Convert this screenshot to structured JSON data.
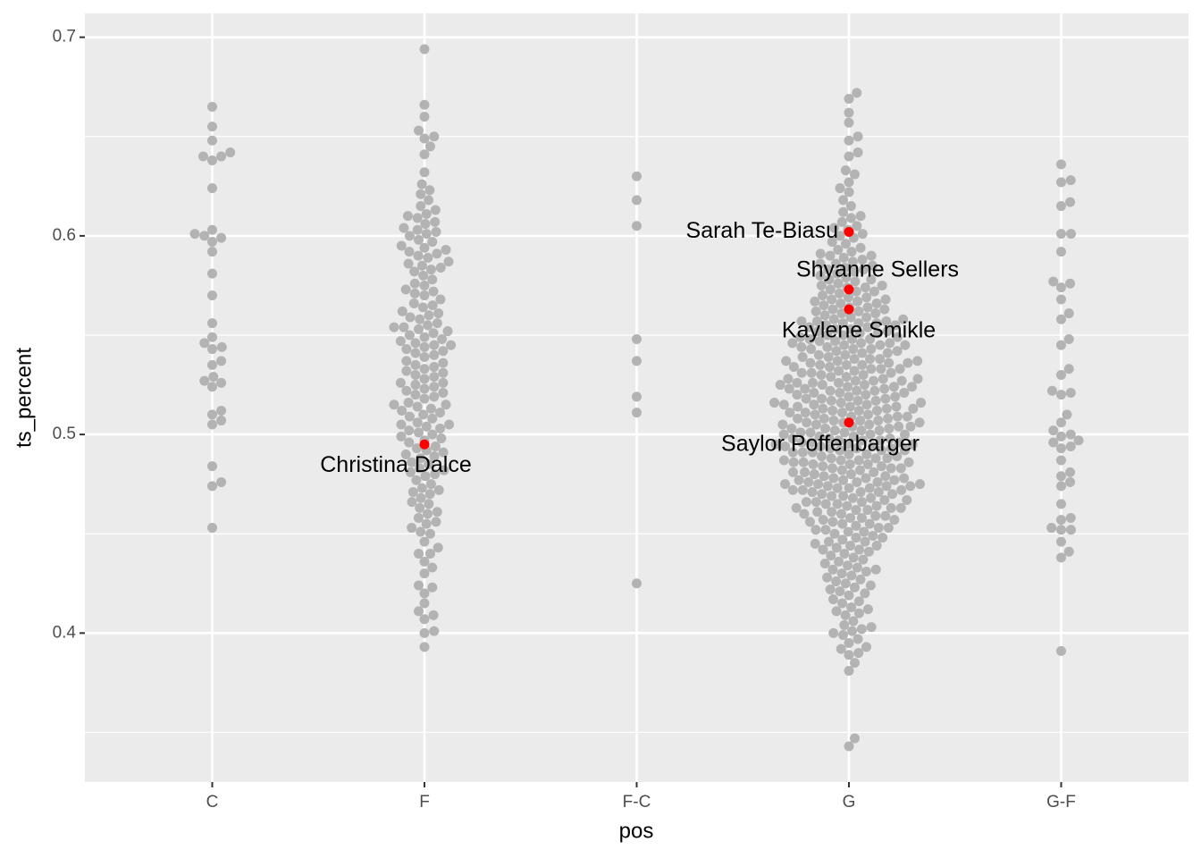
{
  "chart_data": {
    "type": "beeswarm",
    "x_label": "pos",
    "y_label": "ts_percent",
    "categories": [
      "C",
      "F",
      "F-C",
      "G",
      "G-F"
    ],
    "color": "#b3b3b3",
    "highlight_color": "#ff0000",
    "panel_color": "#ebebeb",
    "grid": true,
    "ylim": [
      0.325,
      0.712
    ],
    "yticks": [
      0.4,
      0.5,
      0.6,
      0.7
    ],
    "y_minor_ticks": [
      0.35,
      0.45,
      0.55,
      0.65
    ],
    "values": [
      [
        0.665,
        0.655,
        0.648,
        0.642,
        0.64,
        0.638,
        0.64,
        0.624,
        0.603,
        0.601,
        0.599,
        0.597,
        0.6,
        0.592,
        0.581,
        0.57,
        0.556,
        0.549,
        0.546,
        0.544,
        0.543,
        0.537,
        0.535,
        0.529,
        0.527,
        0.526,
        0.524,
        0.512,
        0.51,
        0.507,
        0.505,
        0.484,
        0.476,
        0.474,
        0.453
      ],
      [
        0.694,
        0.666,
        0.66,
        0.653,
        0.65,
        0.649,
        0.645,
        0.641,
        0.632,
        0.626,
        0.623,
        0.621,
        0.618,
        0.615,
        0.613,
        0.611,
        0.61,
        0.609,
        0.607,
        0.606,
        0.604,
        0.603,
        0.602,
        0.601,
        0.6,
        0.598,
        0.597,
        0.595,
        0.594,
        0.593,
        0.592,
        0.591,
        0.59,
        0.589,
        0.587,
        0.586,
        0.585,
        0.584,
        0.583,
        0.582,
        0.58,
        0.578,
        0.576,
        0.575,
        0.573,
        0.572,
        0.571,
        0.57,
        0.568,
        0.566,
        0.565,
        0.564,
        0.562,
        0.561,
        0.56,
        0.559,
        0.558,
        0.556,
        0.555,
        0.554,
        0.553,
        0.552,
        0.551,
        0.55,
        0.554,
        0.549,
        0.548,
        0.547,
        0.546,
        0.545,
        0.544,
        0.543,
        0.542,
        0.541,
        0.54,
        0.545,
        0.539,
        0.537,
        0.536,
        0.535,
        0.533,
        0.532,
        0.531,
        0.53,
        0.534,
        0.529,
        0.528,
        0.526,
        0.525,
        0.524,
        0.523,
        0.522,
        0.521,
        0.52,
        0.526,
        0.519,
        0.518,
        0.516,
        0.515,
        0.514,
        0.513,
        0.512,
        0.511,
        0.51,
        0.515,
        0.509,
        0.508,
        0.506,
        0.505,
        0.504,
        0.503,
        0.502,
        0.501,
        0.5,
        0.505,
        0.499,
        0.498,
        0.496,
        0.494,
        0.493,
        0.492,
        0.491,
        0.49,
        0.497,
        0.489,
        0.488,
        0.486,
        0.485,
        0.483,
        0.482,
        0.481,
        0.48,
        0.479,
        0.477,
        0.475,
        0.473,
        0.472,
        0.471,
        0.47,
        0.468,
        0.466,
        0.465,
        0.463,
        0.461,
        0.46,
        0.458,
        0.456,
        0.455,
        0.453,
        0.451,
        0.45,
        0.446,
        0.443,
        0.44,
        0.44,
        0.436,
        0.433,
        0.43,
        0.424,
        0.423,
        0.42,
        0.415,
        0.411,
        0.409,
        0.407,
        0.401,
        0.4,
        0.393
      ],
      [
        0.63,
        0.618,
        0.605,
        0.548,
        0.537,
        0.519,
        0.511,
        0.425
      ],
      [
        0.672,
        0.669,
        0.662,
        0.657,
        0.65,
        0.648,
        0.642,
        0.64,
        0.633,
        0.631,
        0.627,
        0.624,
        0.622,
        0.618,
        0.615,
        0.612,
        0.61,
        0.609,
        0.607,
        0.605,
        0.604,
        0.603,
        0.601,
        0.6,
        0.599,
        0.597,
        0.596,
        0.594,
        0.593,
        0.592,
        0.59,
        0.59,
        0.591,
        0.589,
        0.588,
        0.587,
        0.586,
        0.585,
        0.584,
        0.583,
        0.582,
        0.581,
        0.58,
        0.583,
        0.586,
        0.579,
        0.578,
        0.577,
        0.576,
        0.575,
        0.574,
        0.573,
        0.572,
        0.571,
        0.57,
        0.575,
        0.572,
        0.578,
        0.574,
        0.569,
        0.568,
        0.567,
        0.566,
        0.565,
        0.564,
        0.563,
        0.562,
        0.561,
        0.56,
        0.567,
        0.564,
        0.562,
        0.569,
        0.566,
        0.561,
        0.563,
        0.568,
        0.559,
        0.558,
        0.557,
        0.557,
        0.556,
        0.555,
        0.554,
        0.553,
        0.552,
        0.551,
        0.55,
        0.558,
        0.556,
        0.555,
        0.553,
        0.552,
        0.551,
        0.559,
        0.557,
        0.554,
        0.55,
        0.556,
        0.549,
        0.548,
        0.547,
        0.546,
        0.545,
        0.544,
        0.543,
        0.542,
        0.541,
        0.54,
        0.548,
        0.546,
        0.545,
        0.543,
        0.542,
        0.541,
        0.549,
        0.547,
        0.544,
        0.54,
        0.546,
        0.543,
        0.548,
        0.545,
        0.539,
        0.538,
        0.537,
        0.536,
        0.535,
        0.534,
        0.533,
        0.532,
        0.531,
        0.53,
        0.538,
        0.536,
        0.535,
        0.533,
        0.532,
        0.531,
        0.539,
        0.537,
        0.534,
        0.53,
        0.536,
        0.533,
        0.538,
        0.535,
        0.531,
        0.537,
        0.529,
        0.528,
        0.527,
        0.526,
        0.525,
        0.524,
        0.523,
        0.522,
        0.521,
        0.52,
        0.528,
        0.526,
        0.525,
        0.523,
        0.522,
        0.521,
        0.529,
        0.527,
        0.524,
        0.52,
        0.526,
        0.523,
        0.528,
        0.525,
        0.521,
        0.527,
        0.524,
        0.522,
        0.519,
        0.518,
        0.517,
        0.516,
        0.515,
        0.514,
        0.513,
        0.512,
        0.511,
        0.51,
        0.518,
        0.516,
        0.515,
        0.513,
        0.512,
        0.511,
        0.519,
        0.517,
        0.514,
        0.51,
        0.516,
        0.513,
        0.518,
        0.515,
        0.511,
        0.517,
        0.514,
        0.512,
        0.509,
        0.508,
        0.507,
        0.506,
        0.505,
        0.504,
        0.503,
        0.502,
        0.501,
        0.5,
        0.509,
        0.508,
        0.507,
        0.506,
        0.505,
        0.504,
        0.503,
        0.502,
        0.501,
        0.5,
        0.509,
        0.508,
        0.507,
        0.506,
        0.505,
        0.504,
        0.503,
        0.502,
        0.501,
        0.5,
        0.499,
        0.498,
        0.497,
        0.496,
        0.495,
        0.494,
        0.493,
        0.492,
        0.491,
        0.49,
        0.498,
        0.496,
        0.495,
        0.493,
        0.492,
        0.491,
        0.499,
        0.497,
        0.494,
        0.49,
        0.496,
        0.493,
        0.498,
        0.495,
        0.491,
        0.497,
        0.494,
        0.492,
        0.489,
        0.488,
        0.487,
        0.486,
        0.485,
        0.484,
        0.483,
        0.482,
        0.481,
        0.48,
        0.488,
        0.486,
        0.485,
        0.483,
        0.482,
        0.481,
        0.489,
        0.487,
        0.484,
        0.48,
        0.486,
        0.483,
        0.488,
        0.485,
        0.481,
        0.487,
        0.479,
        0.478,
        0.477,
        0.476,
        0.475,
        0.474,
        0.473,
        0.472,
        0.471,
        0.47,
        0.478,
        0.476,
        0.475,
        0.473,
        0.472,
        0.471,
        0.479,
        0.477,
        0.474,
        0.47,
        0.476,
        0.473,
        0.478,
        0.475,
        0.471,
        0.477,
        0.474,
        0.472,
        0.469,
        0.468,
        0.467,
        0.466,
        0.465,
        0.464,
        0.463,
        0.462,
        0.461,
        0.46,
        0.468,
        0.466,
        0.465,
        0.463,
        0.462,
        0.461,
        0.469,
        0.467,
        0.464,
        0.46,
        0.466,
        0.463,
        0.459,
        0.458,
        0.457,
        0.456,
        0.455,
        0.454,
        0.453,
        0.452,
        0.451,
        0.45,
        0.458,
        0.456,
        0.455,
        0.453,
        0.452,
        0.451,
        0.459,
        0.457,
        0.449,
        0.448,
        0.447,
        0.446,
        0.445,
        0.444,
        0.443,
        0.442,
        0.441,
        0.44,
        0.448,
        0.446,
        0.444,
        0.442,
        0.439,
        0.437,
        0.435,
        0.433,
        0.432,
        0.431,
        0.43,
        0.438,
        0.436,
        0.434,
        0.432,
        0.429,
        0.427,
        0.425,
        0.423,
        0.422,
        0.421,
        0.42,
        0.428,
        0.426,
        0.424,
        0.419,
        0.417,
        0.415,
        0.413,
        0.412,
        0.411,
        0.41,
        0.416,
        0.409,
        0.406,
        0.404,
        0.402,
        0.401,
        0.4,
        0.403,
        0.399,
        0.397,
        0.395,
        0.393,
        0.392,
        0.39,
        0.389,
        0.385,
        0.381,
        0.347,
        0.343
      ],
      [
        0.636,
        0.628,
        0.627,
        0.617,
        0.615,
        0.601,
        0.601,
        0.592,
        0.577,
        0.576,
        0.574,
        0.568,
        0.561,
        0.558,
        0.548,
        0.545,
        0.533,
        0.53,
        0.522,
        0.521,
        0.52,
        0.51,
        0.506,
        0.502,
        0.5,
        0.499,
        0.497,
        0.496,
        0.494,
        0.493,
        0.487,
        0.481,
        0.479,
        0.476,
        0.474,
        0.465,
        0.458,
        0.457,
        0.453,
        0.452,
        0.452,
        0.446,
        0.441,
        0.438,
        0.391
      ]
    ],
    "highlights": [
      {
        "label": "Christina Dalce",
        "category": "F",
        "value": 0.495
      },
      {
        "label": "Sarah Te-Biasu",
        "category": "G",
        "value": 0.602
      },
      {
        "label": "Shyanne Sellers",
        "category": "G",
        "value": 0.573
      },
      {
        "label": "Kaylene Smikle",
        "category": "G",
        "value": 0.563
      },
      {
        "label": "Saylor Poffenbarger",
        "category": "G",
        "value": 0.506
      }
    ]
  }
}
